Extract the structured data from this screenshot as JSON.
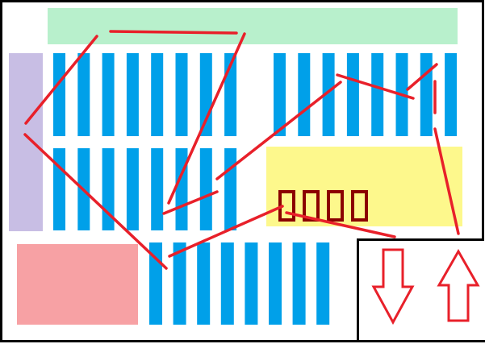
{
  "colors": {
    "background": "#ffffff",
    "outline": "#000000",
    "top_zone": "#b8f0cc",
    "left_zone": "#c8bee4",
    "bottom_left_zone": "#f7a1a4",
    "center_zone": "#fdf88c",
    "shelf": "#00a0e9",
    "route": "#e8202a",
    "station": "#8b0000",
    "exit_arrow": "#e8202a"
  },
  "floor": {
    "zones": [
      {
        "name": "top-zone",
        "color_key": "top_zone"
      },
      {
        "name": "left-zone",
        "color_key": "left_zone"
      },
      {
        "name": "bottom-left-zone",
        "color_key": "bottom_left_zone"
      },
      {
        "name": "center-zone",
        "color_key": "center_zone"
      }
    ],
    "shelf_groups": [
      {
        "name": "shelf-block-top-left",
        "count": 8
      },
      {
        "name": "shelf-block-top-right",
        "count": 8
      },
      {
        "name": "shelf-block-middle-left",
        "count": 8
      },
      {
        "name": "shelf-block-bottom",
        "count": 8
      }
    ],
    "stations": {
      "count": 4
    },
    "arrows": [
      {
        "name": "down-arrow-icon",
        "direction": "down"
      },
      {
        "name": "up-arrow-icon",
        "direction": "up"
      }
    ],
    "route_segments": 11
  }
}
